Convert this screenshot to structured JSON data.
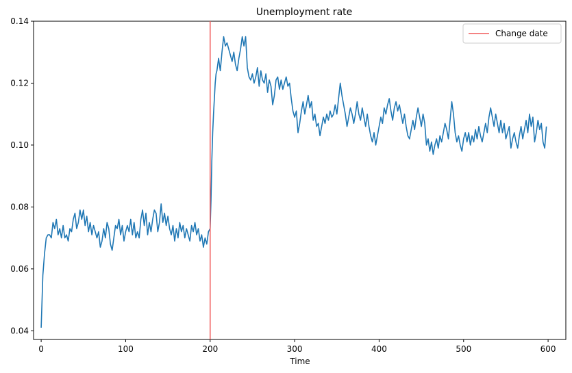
{
  "colors": {
    "series": "#1f77b4",
    "change_line": "#f05a5a",
    "axis": "#000000",
    "legend_border": "#cccccc"
  },
  "chart_data": {
    "type": "line",
    "title": "Unemployment rate",
    "xlabel": "Time",
    "ylabel": "",
    "xlim": [
      -9,
      621
    ],
    "ylim": [
      0.0372,
      0.14
    ],
    "xticks": [
      0,
      100,
      200,
      300,
      400,
      500,
      600
    ],
    "xtick_labels": [
      "0",
      "100",
      "200",
      "300",
      "400",
      "500",
      "600"
    ],
    "yticks": [
      0.04,
      0.06,
      0.08,
      0.1,
      0.12,
      0.14
    ],
    "ytick_labels": [
      "0.04",
      "0.06",
      "0.08",
      "0.10",
      "0.12",
      "0.14"
    ],
    "grid": false,
    "legend": {
      "placement": "top-right",
      "entries": [
        {
          "label": "Change date",
          "kind": "line",
          "color": "#f05a5a"
        }
      ]
    },
    "vline": {
      "x": 200,
      "label": "Change date"
    },
    "series": [
      {
        "color": "#1f77b4",
        "points": [
          [
            0,
            0.041
          ],
          [
            2,
            0.058
          ],
          [
            4,
            0.065
          ],
          [
            6,
            0.07
          ],
          [
            8,
            0.071
          ],
          [
            10,
            0.071
          ],
          [
            12,
            0.07
          ],
          [
            14,
            0.075
          ],
          [
            16,
            0.073
          ],
          [
            18,
            0.076
          ],
          [
            20,
            0.071
          ],
          [
            22,
            0.073
          ],
          [
            24,
            0.07
          ],
          [
            26,
            0.074
          ],
          [
            28,
            0.07
          ],
          [
            30,
            0.071
          ],
          [
            32,
            0.069
          ],
          [
            34,
            0.073
          ],
          [
            36,
            0.072
          ],
          [
            38,
            0.076
          ],
          [
            40,
            0.078
          ],
          [
            42,
            0.073
          ],
          [
            44,
            0.075
          ],
          [
            46,
            0.079
          ],
          [
            48,
            0.076
          ],
          [
            50,
            0.079
          ],
          [
            52,
            0.074
          ],
          [
            54,
            0.077
          ],
          [
            56,
            0.072
          ],
          [
            58,
            0.075
          ],
          [
            60,
            0.071
          ],
          [
            62,
            0.074
          ],
          [
            64,
            0.072
          ],
          [
            66,
            0.07
          ],
          [
            68,
            0.072
          ],
          [
            70,
            0.067
          ],
          [
            72,
            0.069
          ],
          [
            74,
            0.073
          ],
          [
            76,
            0.07
          ],
          [
            78,
            0.075
          ],
          [
            80,
            0.073
          ],
          [
            82,
            0.068
          ],
          [
            84,
            0.066
          ],
          [
            86,
            0.07
          ],
          [
            88,
            0.074
          ],
          [
            90,
            0.073
          ],
          [
            92,
            0.076
          ],
          [
            94,
            0.071
          ],
          [
            96,
            0.074
          ],
          [
            98,
            0.069
          ],
          [
            100,
            0.072
          ],
          [
            102,
            0.074
          ],
          [
            104,
            0.072
          ],
          [
            106,
            0.076
          ],
          [
            108,
            0.071
          ],
          [
            110,
            0.075
          ],
          [
            112,
            0.07
          ],
          [
            114,
            0.072
          ],
          [
            116,
            0.07
          ],
          [
            118,
            0.076
          ],
          [
            120,
            0.079
          ],
          [
            122,
            0.074
          ],
          [
            124,
            0.078
          ],
          [
            126,
            0.071
          ],
          [
            128,
            0.075
          ],
          [
            130,
            0.072
          ],
          [
            132,
            0.076
          ],
          [
            134,
            0.079
          ],
          [
            136,
            0.078
          ],
          [
            138,
            0.072
          ],
          [
            140,
            0.075
          ],
          [
            142,
            0.081
          ],
          [
            144,
            0.075
          ],
          [
            146,
            0.078
          ],
          [
            148,
            0.074
          ],
          [
            150,
            0.077
          ],
          [
            152,
            0.073
          ],
          [
            154,
            0.071
          ],
          [
            156,
            0.074
          ],
          [
            158,
            0.069
          ],
          [
            160,
            0.073
          ],
          [
            162,
            0.07
          ],
          [
            164,
            0.075
          ],
          [
            166,
            0.072
          ],
          [
            168,
            0.074
          ],
          [
            170,
            0.07
          ],
          [
            172,
            0.073
          ],
          [
            174,
            0.071
          ],
          [
            176,
            0.069
          ],
          [
            178,
            0.074
          ],
          [
            180,
            0.072
          ],
          [
            182,
            0.075
          ],
          [
            184,
            0.071
          ],
          [
            186,
            0.073
          ],
          [
            188,
            0.069
          ],
          [
            190,
            0.071
          ],
          [
            192,
            0.067
          ],
          [
            194,
            0.07
          ],
          [
            196,
            0.068
          ],
          [
            198,
            0.072
          ],
          [
            200,
            0.073
          ],
          [
            201,
            0.082
          ],
          [
            202,
            0.095
          ],
          [
            203,
            0.104
          ],
          [
            204,
            0.11
          ],
          [
            205,
            0.115
          ],
          [
            206,
            0.12
          ],
          [
            207,
            0.123
          ],
          [
            208,
            0.124
          ],
          [
            210,
            0.128
          ],
          [
            212,
            0.124
          ],
          [
            214,
            0.13
          ],
          [
            216,
            0.135
          ],
          [
            218,
            0.132
          ],
          [
            220,
            0.133
          ],
          [
            222,
            0.131
          ],
          [
            224,
            0.129
          ],
          [
            226,
            0.127
          ],
          [
            228,
            0.13
          ],
          [
            230,
            0.126
          ],
          [
            232,
            0.124
          ],
          [
            234,
            0.128
          ],
          [
            236,
            0.131
          ],
          [
            238,
            0.135
          ],
          [
            240,
            0.132
          ],
          [
            242,
            0.135
          ],
          [
            244,
            0.125
          ],
          [
            246,
            0.122
          ],
          [
            248,
            0.121
          ],
          [
            250,
            0.123
          ],
          [
            252,
            0.12
          ],
          [
            254,
            0.122
          ],
          [
            256,
            0.125
          ],
          [
            258,
            0.119
          ],
          [
            260,
            0.124
          ],
          [
            262,
            0.121
          ],
          [
            264,
            0.12
          ],
          [
            266,
            0.123
          ],
          [
            268,
            0.117
          ],
          [
            270,
            0.121
          ],
          [
            272,
            0.119
          ],
          [
            274,
            0.113
          ],
          [
            276,
            0.116
          ],
          [
            278,
            0.121
          ],
          [
            280,
            0.122
          ],
          [
            282,
            0.118
          ],
          [
            284,
            0.121
          ],
          [
            286,
            0.118
          ],
          [
            288,
            0.12
          ],
          [
            290,
            0.122
          ],
          [
            292,
            0.119
          ],
          [
            294,
            0.12
          ],
          [
            296,
            0.115
          ],
          [
            298,
            0.111
          ],
          [
            300,
            0.109
          ],
          [
            302,
            0.111
          ],
          [
            304,
            0.104
          ],
          [
            306,
            0.107
          ],
          [
            308,
            0.111
          ],
          [
            310,
            0.114
          ],
          [
            312,
            0.11
          ],
          [
            314,
            0.113
          ],
          [
            316,
            0.116
          ],
          [
            318,
            0.112
          ],
          [
            320,
            0.114
          ],
          [
            322,
            0.108
          ],
          [
            324,
            0.11
          ],
          [
            326,
            0.106
          ],
          [
            328,
            0.107
          ],
          [
            330,
            0.103
          ],
          [
            332,
            0.106
          ],
          [
            334,
            0.109
          ],
          [
            336,
            0.107
          ],
          [
            338,
            0.11
          ],
          [
            340,
            0.108
          ],
          [
            342,
            0.111
          ],
          [
            344,
            0.109
          ],
          [
            346,
            0.11
          ],
          [
            348,
            0.113
          ],
          [
            350,
            0.11
          ],
          [
            352,
            0.115
          ],
          [
            354,
            0.12
          ],
          [
            356,
            0.116
          ],
          [
            358,
            0.113
          ],
          [
            360,
            0.11
          ],
          [
            362,
            0.106
          ],
          [
            364,
            0.109
          ],
          [
            366,
            0.112
          ],
          [
            368,
            0.11
          ],
          [
            370,
            0.107
          ],
          [
            372,
            0.11
          ],
          [
            374,
            0.114
          ],
          [
            376,
            0.11
          ],
          [
            378,
            0.108
          ],
          [
            380,
            0.112
          ],
          [
            382,
            0.109
          ],
          [
            384,
            0.106
          ],
          [
            386,
            0.11
          ],
          [
            388,
            0.106
          ],
          [
            390,
            0.103
          ],
          [
            392,
            0.101
          ],
          [
            394,
            0.104
          ],
          [
            396,
            0.1
          ],
          [
            398,
            0.103
          ],
          [
            400,
            0.106
          ],
          [
            402,
            0.109
          ],
          [
            404,
            0.107
          ],
          [
            406,
            0.112
          ],
          [
            408,
            0.11
          ],
          [
            410,
            0.113
          ],
          [
            412,
            0.115
          ],
          [
            414,
            0.111
          ],
          [
            416,
            0.108
          ],
          [
            418,
            0.112
          ],
          [
            420,
            0.114
          ],
          [
            422,
            0.111
          ],
          [
            424,
            0.113
          ],
          [
            426,
            0.11
          ],
          [
            428,
            0.107
          ],
          [
            430,
            0.11
          ],
          [
            432,
            0.106
          ],
          [
            434,
            0.103
          ],
          [
            436,
            0.102
          ],
          [
            438,
            0.105
          ],
          [
            440,
            0.108
          ],
          [
            442,
            0.105
          ],
          [
            444,
            0.109
          ],
          [
            446,
            0.112
          ],
          [
            448,
            0.109
          ],
          [
            450,
            0.106
          ],
          [
            452,
            0.11
          ],
          [
            454,
            0.107
          ],
          [
            456,
            0.1
          ],
          [
            458,
            0.102
          ],
          [
            460,
            0.098
          ],
          [
            462,
            0.101
          ],
          [
            464,
            0.097
          ],
          [
            466,
            0.1
          ],
          [
            468,
            0.102
          ],
          [
            470,
            0.099
          ],
          [
            472,
            0.103
          ],
          [
            474,
            0.101
          ],
          [
            476,
            0.104
          ],
          [
            478,
            0.107
          ],
          [
            480,
            0.105
          ],
          [
            482,
            0.102
          ],
          [
            484,
            0.108
          ],
          [
            486,
            0.114
          ],
          [
            488,
            0.11
          ],
          [
            490,
            0.104
          ],
          [
            492,
            0.101
          ],
          [
            494,
            0.103
          ],
          [
            496,
            0.1
          ],
          [
            498,
            0.098
          ],
          [
            500,
            0.102
          ],
          [
            502,
            0.104
          ],
          [
            504,
            0.101
          ],
          [
            506,
            0.104
          ],
          [
            508,
            0.1
          ],
          [
            510,
            0.103
          ],
          [
            512,
            0.101
          ],
          [
            514,
            0.105
          ],
          [
            516,
            0.102
          ],
          [
            518,
            0.106
          ],
          [
            520,
            0.103
          ],
          [
            522,
            0.101
          ],
          [
            524,
            0.104
          ],
          [
            526,
            0.107
          ],
          [
            528,
            0.104
          ],
          [
            530,
            0.109
          ],
          [
            532,
            0.112
          ],
          [
            534,
            0.109
          ],
          [
            536,
            0.106
          ],
          [
            538,
            0.11
          ],
          [
            540,
            0.107
          ],
          [
            542,
            0.104
          ],
          [
            544,
            0.108
          ],
          [
            546,
            0.104
          ],
          [
            548,
            0.107
          ],
          [
            550,
            0.102
          ],
          [
            552,
            0.104
          ],
          [
            554,
            0.106
          ],
          [
            556,
            0.099
          ],
          [
            558,
            0.102
          ],
          [
            560,
            0.104
          ],
          [
            562,
            0.101
          ],
          [
            564,
            0.099
          ],
          [
            566,
            0.103
          ],
          [
            568,
            0.106
          ],
          [
            570,
            0.102
          ],
          [
            572,
            0.105
          ],
          [
            574,
            0.108
          ],
          [
            576,
            0.104
          ],
          [
            578,
            0.11
          ],
          [
            580,
            0.106
          ],
          [
            582,
            0.109
          ],
          [
            584,
            0.101
          ],
          [
            586,
            0.104
          ],
          [
            588,
            0.108
          ],
          [
            590,
            0.105
          ],
          [
            592,
            0.107
          ],
          [
            594,
            0.101
          ],
          [
            596,
            0.099
          ],
          [
            598,
            0.106
          ]
        ]
      }
    ]
  }
}
